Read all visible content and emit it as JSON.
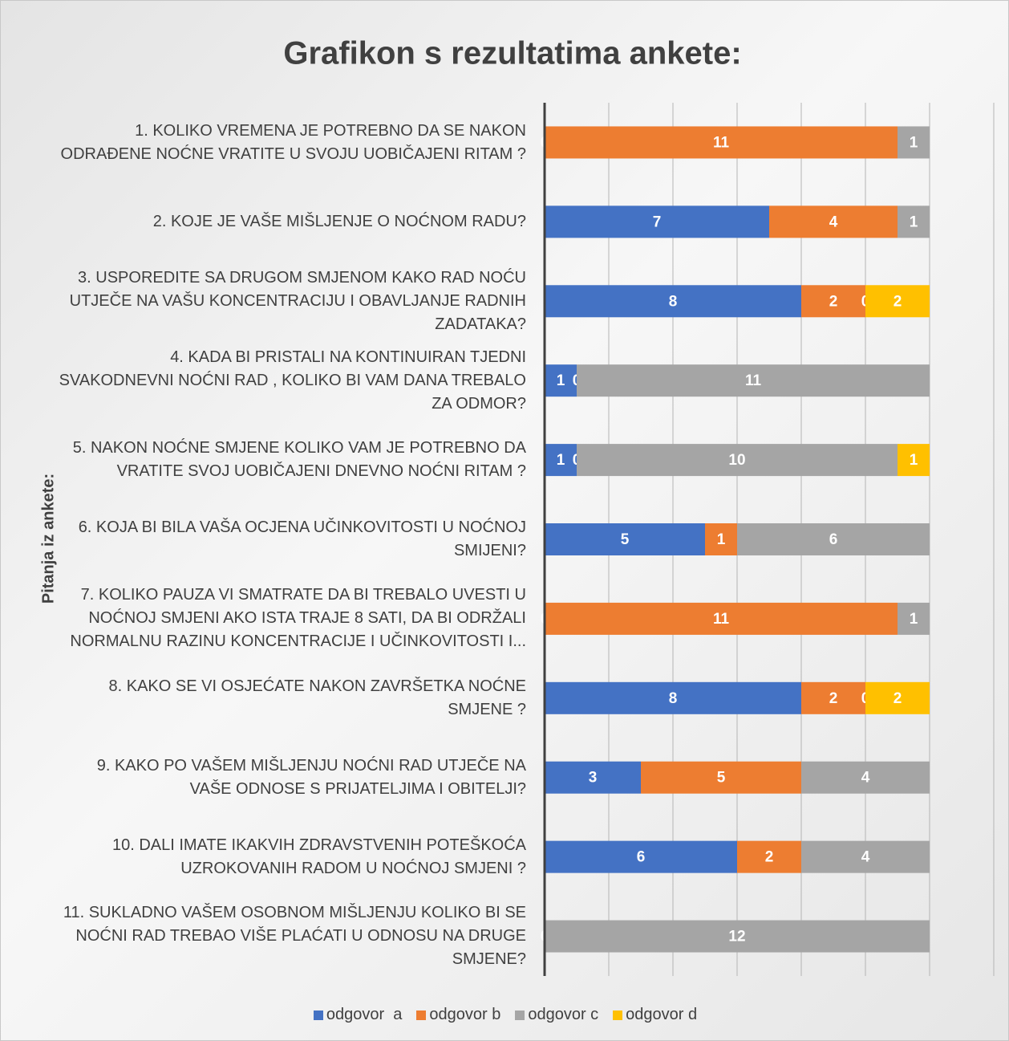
{
  "chart_data": {
    "type": "stacked-bar-horizontal",
    "title": "Grafikon s rezultatima ankete:",
    "y_label": "Pitanja iz ankete:",
    "categories": [
      "1. KOLIKO VREMENA JE POTREBNO DA SE NAKON ODRAĐENE NOĆNE VRATITE U SVOJU UOBIČAJENI RITAM ?",
      "2. KOJE JE VAŠE MIŠLJENJE O NOĆNOM RADU?",
      "3. USPOREDITE SA DRUGOM SMJENOM KAKO RAD NOĆU UTJEČE NA VAŠU KONCENTRACIJU I OBAVLJANJE RADNIH ZADATAKA?",
      "4. KADA BI PRISTALI NA KONTINUIRAN TJEDNI SVAKODNEVNI NOĆNI RAD , KOLIKO BI VAM DANA TREBALO ZA ODMOR?",
      "5. NAKON NOĆNE SMJENE KOLIKO VAM JE POTREBNO DA VRATITE SVOJ UOBIČAJENI DNEVNO NOĆNI RITAM ?",
      "6. KOJA BI BILA VAŠA OCJENA UČINKOVITOSTI U NOĆNOJ SMIJENI?",
      "7. KOLIKO PAUZA VI SMATRATE DA BI TREBALO UVESTI U NOĆNOJ SMJENI AKO ISTA TRAJE 8 SATI, DA BI ODRŽALI NORMALNU RAZINU KONCENTRACIJE I UČINKOVITOSTI I...",
      "8. KAKO SE VI OSJEĆATE NAKON ZAVRŠETKA NOĆNE SMJENE ?",
      "9. KAKO PO VAŠEM MIŠLJENJU NOĆNI RAD UTJEČE NA VAŠE ODNOSE S PRIJATELJIMA I OBITELJI?",
      "10. DALI IMATE IKAKVIH ZDRAVSTVENIH POTEŠKOĆA UZROKOVANIH RADOM U NOĆNOJ SMJENI ?",
      "11. SUKLADNO VAŠEM OSOBNOM MIŠLJENJU KOLIKO BI SE NOĆNI RAD TREBAO VIŠE PLAĆATI U ODNOSU NA DRUGE SMJENE?"
    ],
    "series": [
      {
        "name": "odgovor  a",
        "color": "#4472c4",
        "values": [
          0,
          7,
          8,
          1,
          1,
          5,
          0,
          8,
          3,
          6,
          0
        ]
      },
      {
        "name": "odgovor b",
        "color": "#ed7d31",
        "values": [
          11,
          4,
          2,
          0,
          0,
          1,
          11,
          2,
          5,
          2,
          null
        ]
      },
      {
        "name": "odgovor c",
        "color": "#a5a5a5",
        "values": [
          1,
          1,
          0,
          11,
          10,
          6,
          1,
          0,
          4,
          4,
          12
        ]
      },
      {
        "name": "odgovor d",
        "color": "#ffc000",
        "values": [
          null,
          null,
          2,
          null,
          1,
          null,
          null,
          2,
          null,
          null,
          null
        ]
      }
    ],
    "xlim": [
      0,
      14
    ],
    "xticks": [
      0,
      2,
      4,
      6,
      8,
      10,
      12,
      14
    ],
    "grid": true,
    "legend": "bottom"
  }
}
